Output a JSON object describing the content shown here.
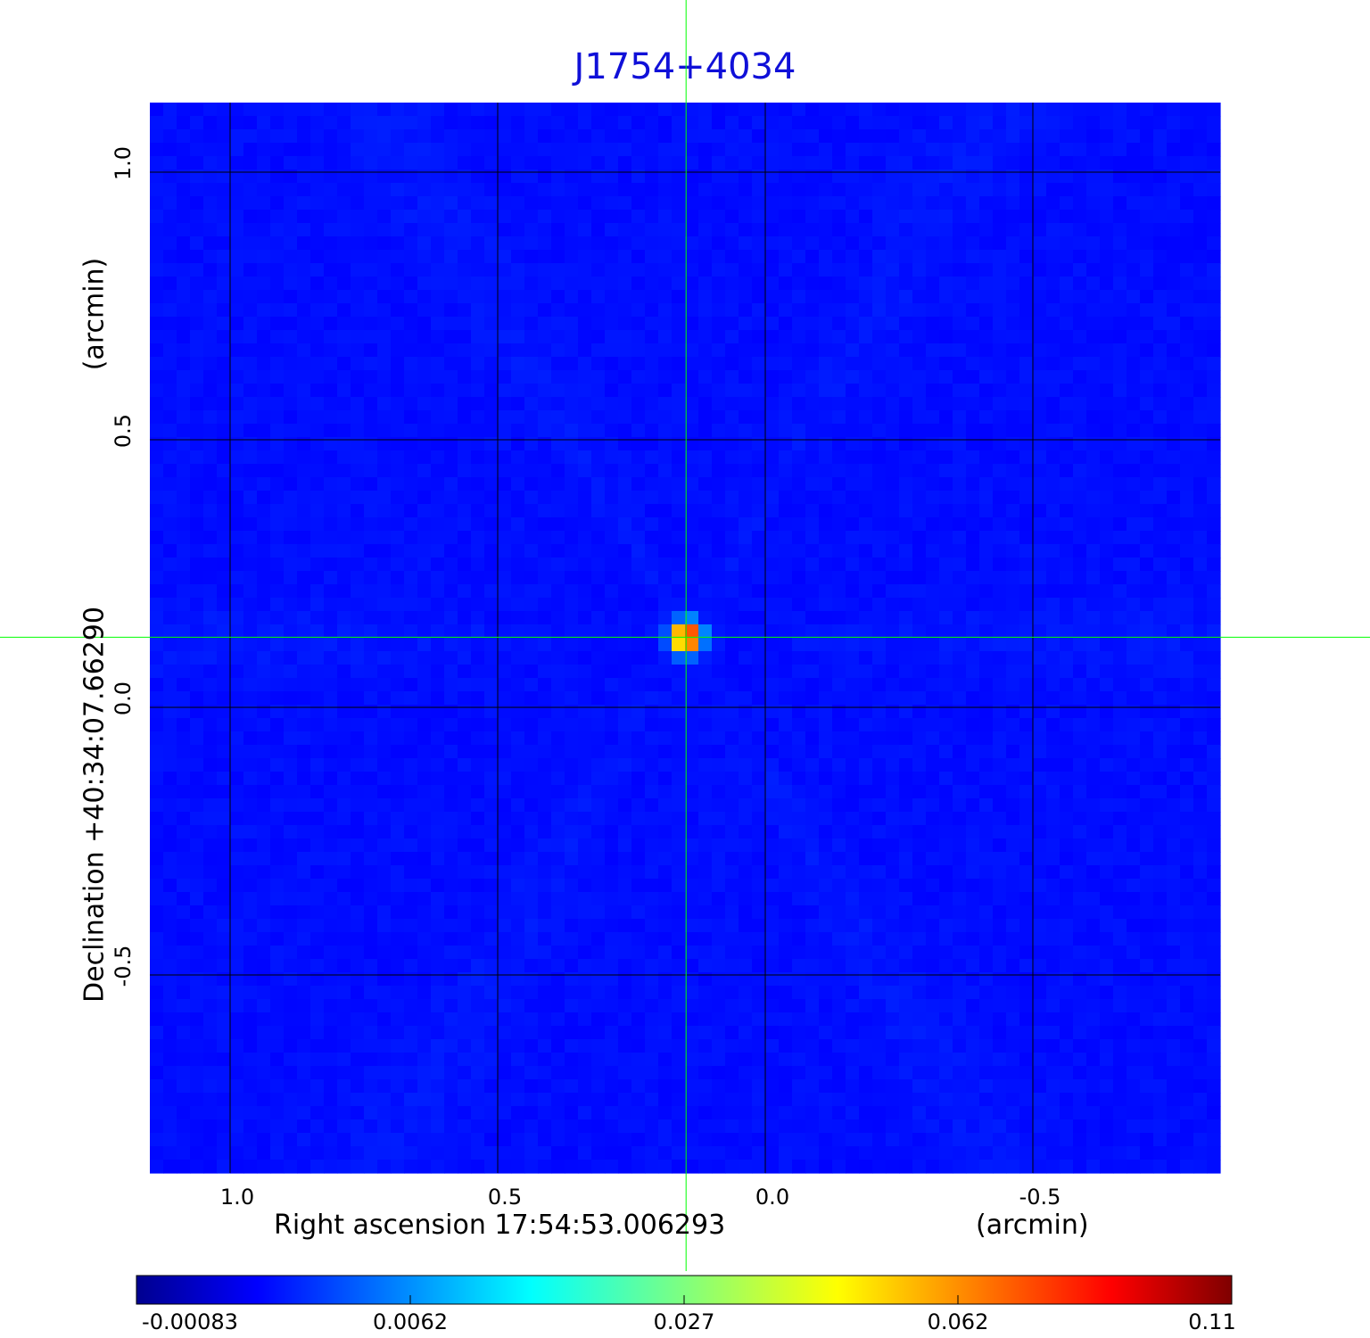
{
  "chart_data": {
    "type": "heatmap",
    "title": "J1754+4034",
    "xlabel": "Right ascension  17:54:53.006293",
    "xunit": "(arcmin)",
    "ylabel": "Declination  +40:34:07.66290",
    "yunit": "(arcmin)",
    "xlim": [
      1.15,
      -0.85
    ],
    "ylim": [
      -0.87,
      1.13
    ],
    "x_ticks": [
      "1.0",
      "0.5",
      "0.0",
      "-0.5"
    ],
    "x_tick_values": [
      1.0,
      0.5,
      0.0,
      -0.5
    ],
    "y_ticks": [
      "1.0",
      "0.5",
      "0.0",
      "-0.5"
    ],
    "y_tick_values": [
      1.0,
      0.5,
      0.0,
      -0.5
    ],
    "grid": true,
    "colormap": "jet",
    "crosshair": {
      "x": 0.148,
      "y": 0.131,
      "color": "#00ff00"
    },
    "source_peak": {
      "x": 0.148,
      "y": 0.131,
      "value": 0.11
    },
    "colorbar": {
      "ticks": [
        "-0.00083",
        "0.0062",
        "0.027",
        "0.062",
        "0.11"
      ],
      "range": [
        -0.00083,
        0.11
      ]
    }
  }
}
